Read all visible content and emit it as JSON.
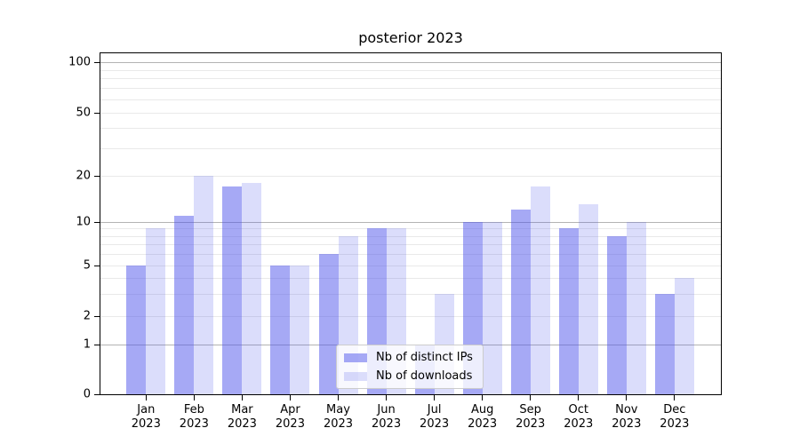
{
  "chart_data": {
    "type": "bar",
    "title": "posterior 2023",
    "categories": [
      "Jan 2023",
      "Feb 2023",
      "Mar 2023",
      "Apr 2023",
      "May 2023",
      "Jun 2023",
      "Jul 2023",
      "Aug 2023",
      "Sep 2023",
      "Oct 2023",
      "Nov 2023",
      "Dec 2023"
    ],
    "series": [
      {
        "name": "Nb of distinct IPs",
        "color": "rgba(77,84,235,0.5)",
        "values": [
          5,
          11,
          17,
          5,
          6,
          9,
          1,
          10,
          12,
          9,
          8,
          3
        ]
      },
      {
        "name": "Nb of downloads",
        "color": "rgba(77,84,235,0.2)",
        "values": [
          9,
          20,
          18,
          5,
          8,
          9,
          3,
          10,
          17,
          13,
          10,
          4
        ]
      }
    ],
    "xlabel": "",
    "ylabel": "",
    "yscale": "asinh-log",
    "ylim": [
      0,
      100
    ],
    "yticks_labeled": [
      0,
      1,
      2,
      5,
      10,
      20,
      50,
      100
    ],
    "gridlines_major": [
      1,
      10,
      100
    ],
    "gridlines_minor": [
      2,
      3,
      4,
      5,
      6,
      7,
      8,
      9,
      20,
      30,
      40,
      50,
      60,
      70,
      80,
      90
    ],
    "grid_on": true,
    "legend_position": "lower center",
    "colors": {
      "grid_major": "#b3b3b3",
      "grid_minor": "#e9e9e9",
      "axis": "#000000",
      "background": "#ffffff"
    }
  }
}
